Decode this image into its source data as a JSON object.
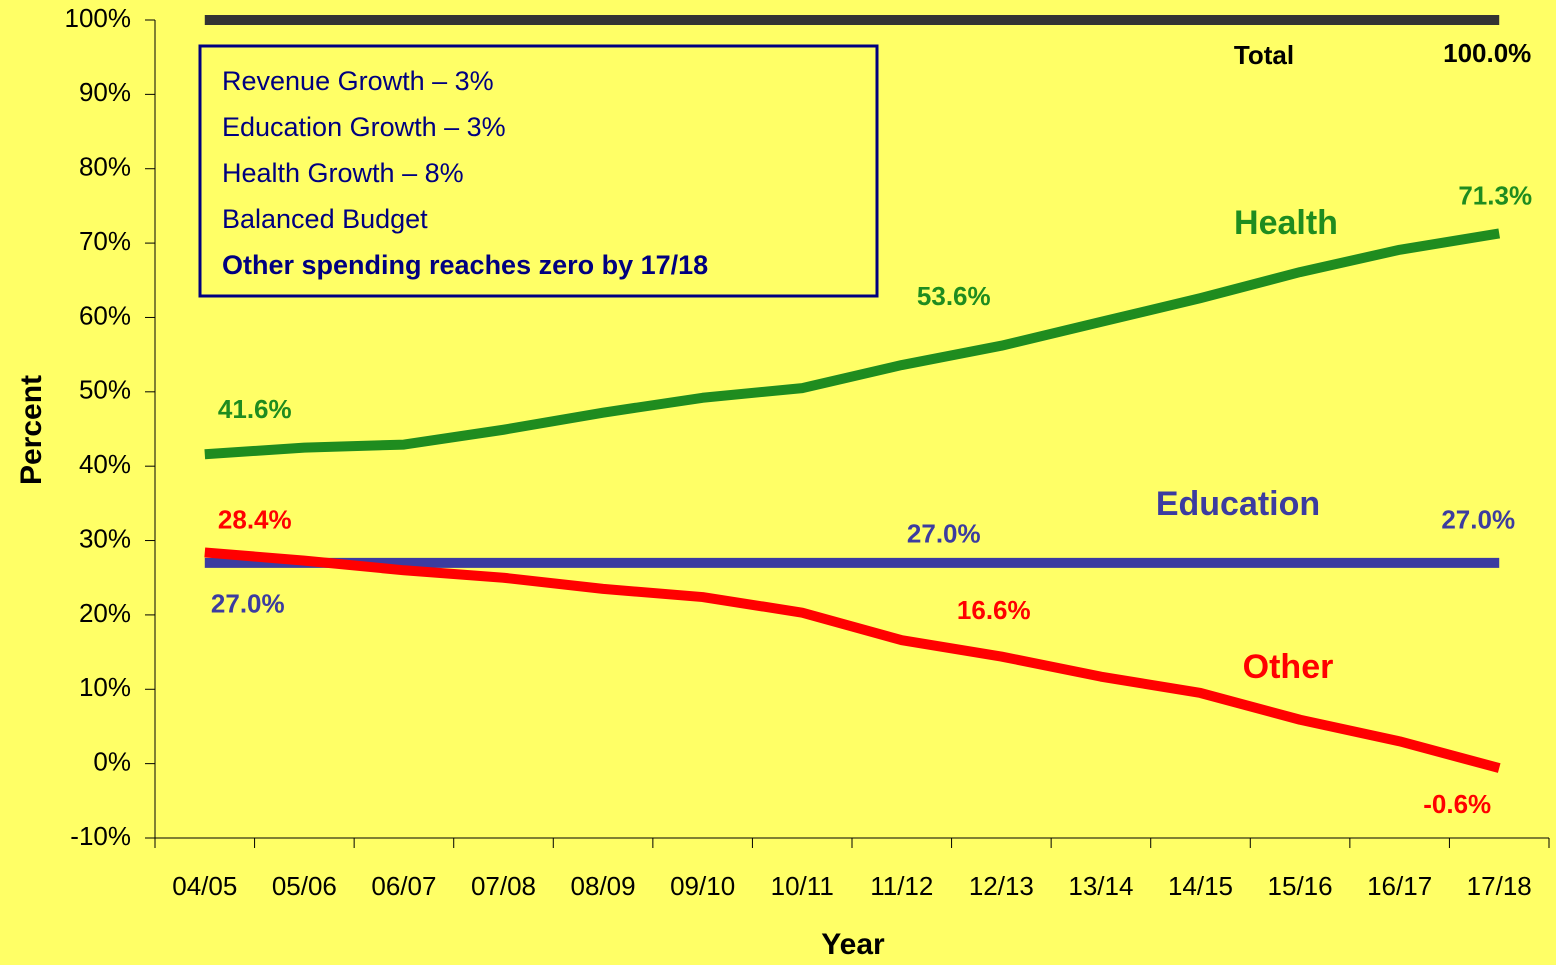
{
  "chart_data": {
    "type": "line",
    "x_label": "Year",
    "y_label": "Percent",
    "annotations": [
      "Revenue Growth – 3%",
      "Education Growth – 3%",
      "Health Growth – 8%",
      "Balanced Budget",
      "Other spending reaches zero by 17/18"
    ],
    "categories": [
      "04/05",
      "05/06",
      "06/07",
      "07/08",
      "08/09",
      "09/10",
      "10/11",
      "11/12",
      "12/13",
      "13/14",
      "14/15",
      "15/16",
      "16/17",
      "17/18"
    ],
    "ylim": [
      -10,
      100
    ],
    "yticks": [
      {
        "value": -10,
        "label": "-10%"
      },
      {
        "value": 0,
        "label": "0%"
      },
      {
        "value": 10,
        "label": "10%"
      },
      {
        "value": 20,
        "label": "20%"
      },
      {
        "value": 30,
        "label": "30%"
      },
      {
        "value": 40,
        "label": "40%"
      },
      {
        "value": 50,
        "label": "50%"
      },
      {
        "value": 60,
        "label": "60%"
      },
      {
        "value": 70,
        "label": "70%"
      },
      {
        "value": 80,
        "label": "80%"
      },
      {
        "value": 90,
        "label": "90%"
      },
      {
        "value": 100,
        "label": "100%"
      }
    ],
    "series": [
      {
        "name": "Total",
        "color": "#333333",
        "values": [
          100,
          100,
          100,
          100,
          100,
          100,
          100,
          100,
          100,
          100,
          100,
          100,
          100,
          100
        ],
        "value_labels": [
          null,
          null,
          null,
          null,
          null,
          null,
          null,
          null,
          null,
          null,
          null,
          null,
          null,
          "100.0%"
        ]
      },
      {
        "name": "Health",
        "color": "#1f8c1f",
        "values": [
          41.6,
          42.5,
          42.9,
          44.9,
          47.2,
          49.2,
          50.5,
          53.6,
          56.2,
          59.4,
          62.6,
          66.1,
          69.1,
          71.3
        ],
        "value_labels": [
          "41.6%",
          null,
          null,
          null,
          null,
          null,
          null,
          "53.6%",
          null,
          null,
          null,
          null,
          null,
          "71.3%"
        ]
      },
      {
        "name": "Education",
        "color": "#3c3ca0",
        "values": [
          27,
          27,
          27,
          27,
          27,
          27,
          27,
          27,
          27,
          27,
          27,
          27,
          27,
          27
        ],
        "value_labels": [
          "27.0%",
          null,
          null,
          null,
          null,
          null,
          null,
          "27.0%",
          null,
          null,
          null,
          null,
          null,
          "27.0%"
        ]
      },
      {
        "name": "Other",
        "color": "#ff0000",
        "values": [
          28.4,
          27.3,
          26.0,
          25.0,
          23.5,
          22.4,
          20.3,
          16.6,
          14.4,
          11.7,
          9.5,
          5.9,
          3.0,
          -0.6
        ],
        "value_labels": [
          "28.4%",
          null,
          null,
          null,
          null,
          null,
          null,
          "16.6%",
          null,
          null,
          null,
          null,
          null,
          "-0.6%"
        ]
      }
    ]
  }
}
